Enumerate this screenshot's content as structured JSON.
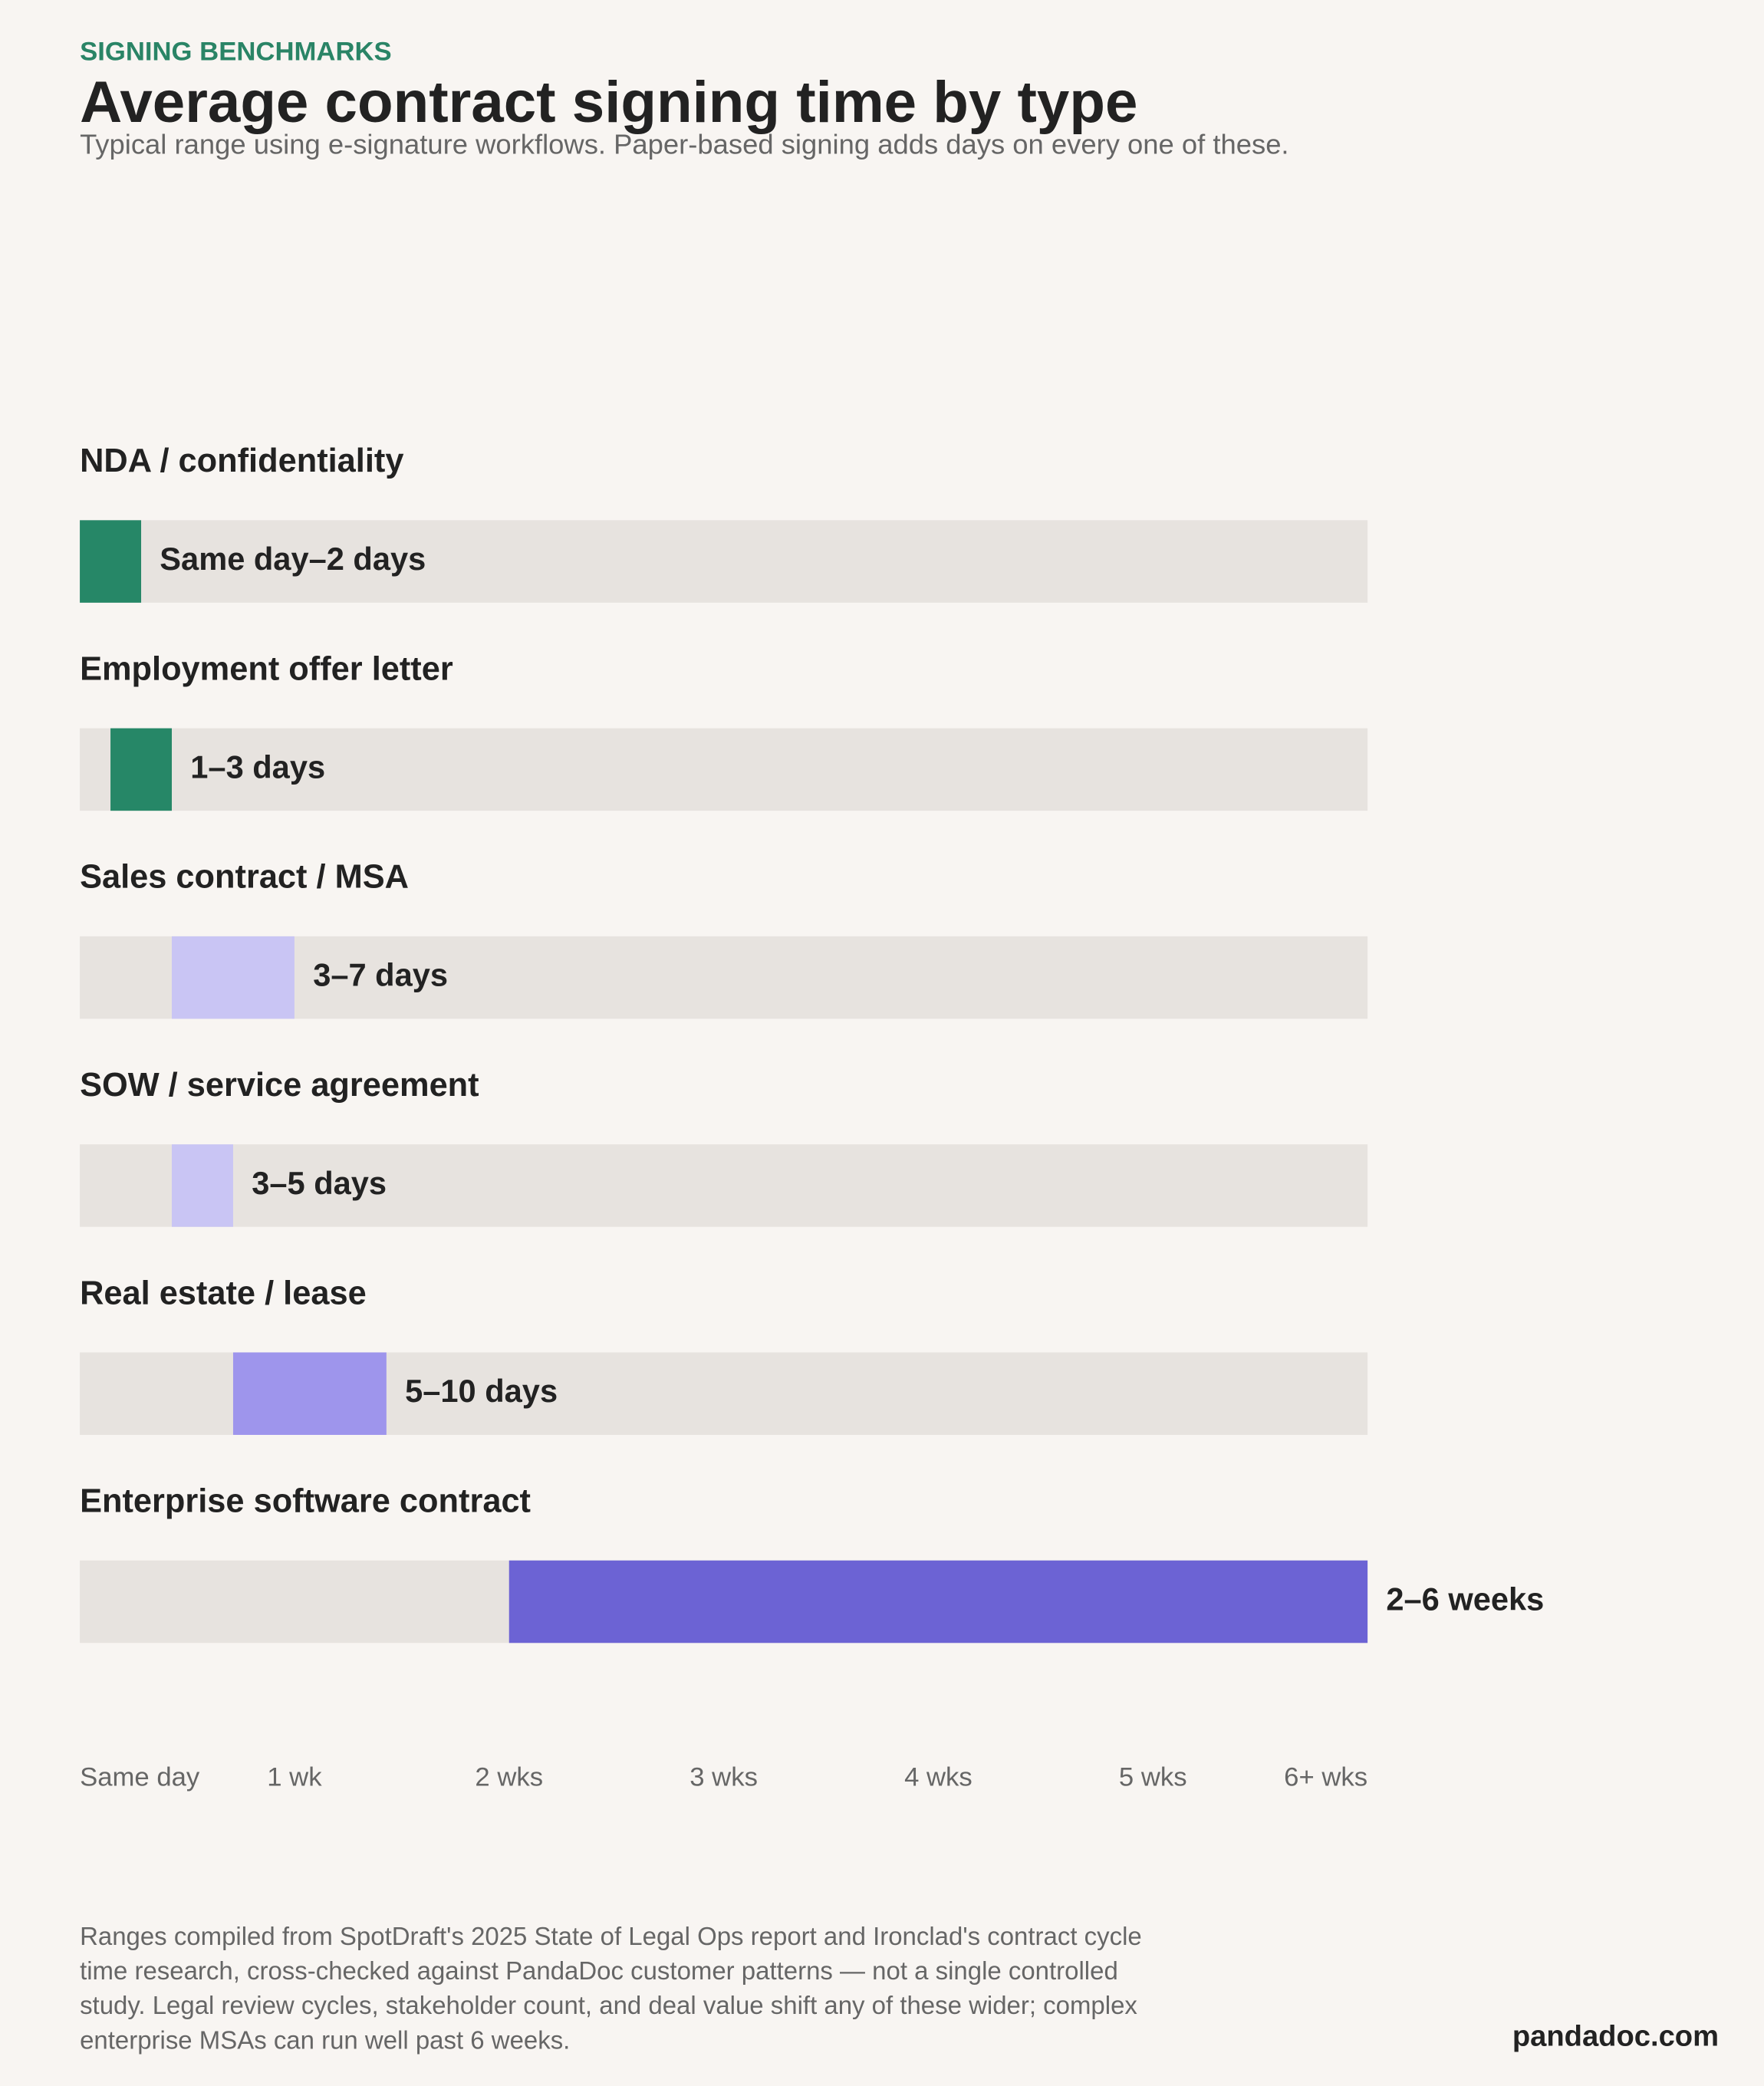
{
  "chart_data": {
    "type": "range-bar",
    "eyebrow": "SIGNING BENCHMARKS",
    "title": "Average contract signing time by type",
    "subtitle": "Typical range using e-signature workflows. Paper-based signing adds days on every one of these.",
    "categories": [
      "NDA / confidentiality",
      "Employment offer letter",
      "Sales contract / MSA",
      "SOW / service agreement",
      "Real estate / lease",
      "Enterprise software contract"
    ],
    "starts": [
      0,
      1,
      3,
      3,
      5,
      14
    ],
    "ends": [
      2,
      3,
      7,
      5,
      10,
      42
    ],
    "value_labels": [
      "Same day–2 days",
      "1–3 days",
      "3–7 days",
      "3–5 days",
      "5–10 days",
      "2–6 weeks"
    ],
    "colors": [
      "#268767",
      "#268767",
      "#c9c5f4",
      "#c9c5f4",
      "#9e95ec",
      "#6c63d4"
    ],
    "track_color": "#e7e3df",
    "xlim": [
      0,
      42
    ],
    "xticks": [
      {
        "value": 0,
        "label": "Same day"
      },
      {
        "value": 7,
        "label": "1 wk"
      },
      {
        "value": 14,
        "label": "2 wks"
      },
      {
        "value": 21,
        "label": "3 wks"
      },
      {
        "value": 28,
        "label": "4 wks"
      },
      {
        "value": 35,
        "label": "5 wks"
      },
      {
        "value": 42,
        "label": "6+ wks"
      }
    ],
    "footnote": "Ranges compiled from SpotDraft's 2025 State of Legal Ops report and Ironclad's contract cycle time research, cross-checked against PandaDoc customer patterns — not a single controlled study. Legal review cycles, stakeholder count, and deal value shift any of these wider; complex enterprise MSAs can run well past 6 weeks.",
    "brand": "pandadoc.com"
  }
}
